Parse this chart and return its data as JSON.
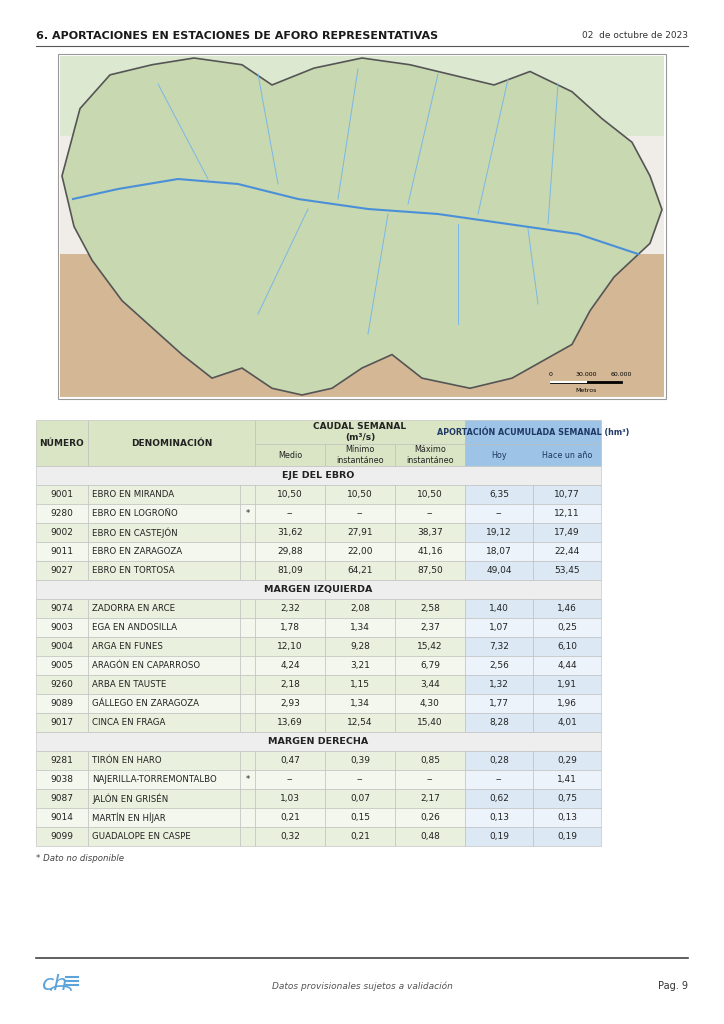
{
  "title": "6. APORTACIONES EN ESTACIONES DE AFORO REPRESENTATIVAS",
  "date": "02  de octubre de 2023",
  "footer_text": "Datos provisionales sujetos a validación",
  "page": "Pag. 9",
  "footnote": "* Dato no disponible",
  "table": {
    "section_eje": "EJE DEL EBRO",
    "section_margen_izq": "MARGEN IZQUIERDA",
    "section_margen_der": "MARGEN DERECHA",
    "rows_eje": [
      [
        "9001",
        "EBRO EN MIRANDA",
        "",
        "10,50",
        "10,50",
        "10,50",
        "6,35",
        "10,77"
      ],
      [
        "9280",
        "EBRO EN LOGROÑO",
        "*",
        "--",
        "--",
        "--",
        "--",
        "12,11"
      ],
      [
        "9002",
        "EBRO EN CASTEJÓN",
        "",
        "31,62",
        "27,91",
        "38,37",
        "19,12",
        "17,49"
      ],
      [
        "9011",
        "EBRO EN ZARAGOZA",
        "",
        "29,88",
        "22,00",
        "41,16",
        "18,07",
        "22,44"
      ],
      [
        "9027",
        "EBRO EN TORTOSA",
        "",
        "81,09",
        "64,21",
        "87,50",
        "49,04",
        "53,45"
      ]
    ],
    "rows_margen_izq": [
      [
        "9074",
        "ZADORRA EN ARCE",
        "",
        "2,32",
        "2,08",
        "2,58",
        "1,40",
        "1,46"
      ],
      [
        "9003",
        "EGA EN ANDOSILLA",
        "",
        "1,78",
        "1,34",
        "2,37",
        "1,07",
        "0,25"
      ],
      [
        "9004",
        "ARGA EN FUNES",
        "",
        "12,10",
        "9,28",
        "15,42",
        "7,32",
        "6,10"
      ],
      [
        "9005",
        "ARAGÓN EN CAPARROSO",
        "",
        "4,24",
        "3,21",
        "6,79",
        "2,56",
        "4,44"
      ],
      [
        "9260",
        "ARBA EN TAUSTE",
        "",
        "2,18",
        "1,15",
        "3,44",
        "1,32",
        "1,91"
      ],
      [
        "9089",
        "GÁLLEGO EN ZARAGOZA",
        "",
        "2,93",
        "1,34",
        "4,30",
        "1,77",
        "1,96"
      ],
      [
        "9017",
        "CINCA EN FRAGA",
        "",
        "13,69",
        "12,54",
        "15,40",
        "8,28",
        "4,01"
      ]
    ],
    "rows_margen_der": [
      [
        "9281",
        "TIRÓN EN HARO",
        "",
        "0,47",
        "0,39",
        "0,85",
        "0,28",
        "0,29"
      ],
      [
        "9038",
        "NAJERILLA-TORREMONTALBO",
        "*",
        "--",
        "--",
        "--",
        "--",
        "1,41"
      ],
      [
        "9087",
        "JALÓN EN GRISÉN",
        "",
        "1,03",
        "0,07",
        "2,17",
        "0,62",
        "0,75"
      ],
      [
        "9014",
        "MARTÍN EN HÍJAR",
        "",
        "0,21",
        "0,15",
        "0,26",
        "0,13",
        "0,13"
      ],
      [
        "9099",
        "GUADALOPE EN CASPE",
        "",
        "0,32",
        "0,21",
        "0,48",
        "0,19",
        "0,19"
      ]
    ]
  },
  "colors": {
    "header_green": "#d9e5c5",
    "header_blue": "#9dc3e6",
    "row_even_left": "#e9f0de",
    "row_odd_left": "#f4f7ed",
    "row_even_right": "#dce9f5",
    "row_odd_right": "#ecf3fa",
    "section_bg": "#eeeeee",
    "border": "#cccccc",
    "title_color": "#1a1a1a",
    "blue_header_text": "#1f3864"
  }
}
